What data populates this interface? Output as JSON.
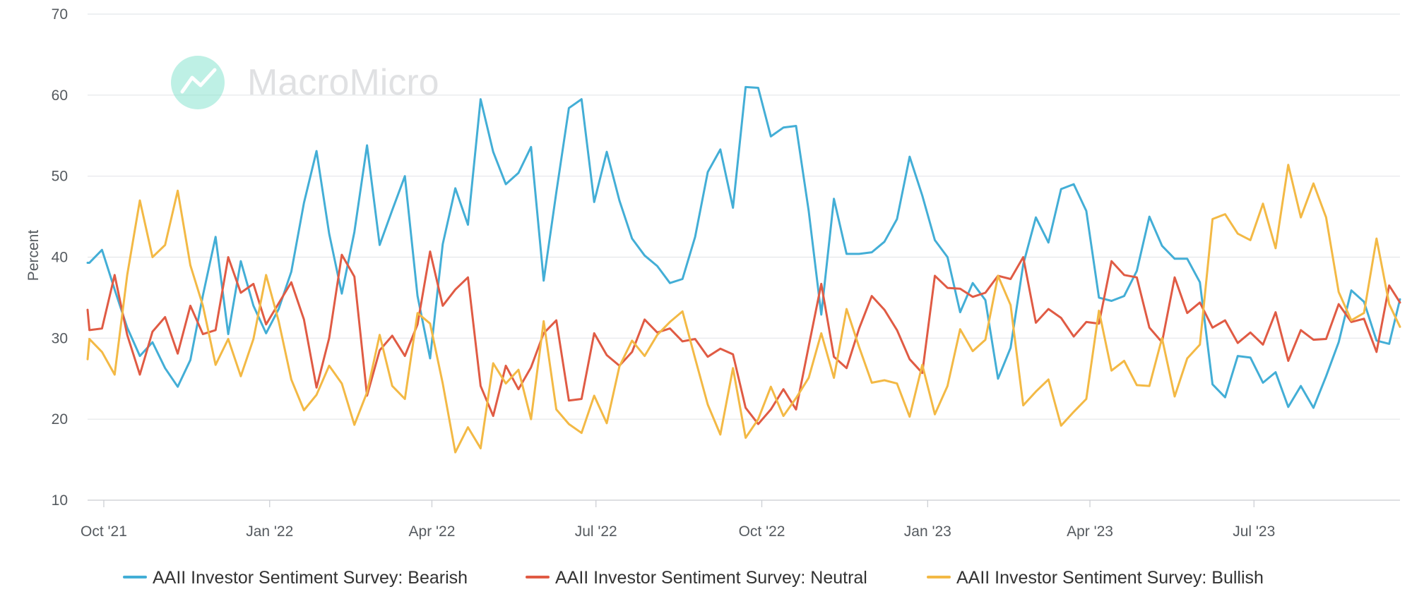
{
  "watermark": {
    "text": "MacroMicro",
    "icon": "chart-logo-icon",
    "color": "#a8efe0"
  },
  "chart_data": {
    "type": "line",
    "ylabel": "Percent",
    "xlabel": "",
    "ylim": [
      10,
      70
    ],
    "yticks": [
      10,
      20,
      30,
      40,
      50,
      60,
      70
    ],
    "grid": true,
    "legend_position": "bottom",
    "x_start": "2021-09-22",
    "x_end": "2023-09-20",
    "x_tick_dates": [
      "2021-10-01",
      "2022-01-01",
      "2022-04-01",
      "2022-07-01",
      "2022-10-01",
      "2023-01-01",
      "2023-04-01",
      "2023-07-01"
    ],
    "x_tick_labels": [
      "Oct '21",
      "Jan '22",
      "Apr '22",
      "Jul '22",
      "Oct '22",
      "Jan '23",
      "Apr '23",
      "Jul '23"
    ],
    "x": [
      "2021-09-22",
      "2021-09-23",
      "2021-09-30",
      "2021-10-07",
      "2021-10-14",
      "2021-10-21",
      "2021-10-28",
      "2021-11-04",
      "2021-11-11",
      "2021-11-18",
      "2021-11-25",
      "2021-12-02",
      "2021-12-09",
      "2021-12-16",
      "2021-12-23",
      "2021-12-30",
      "2022-01-06",
      "2022-01-13",
      "2022-01-20",
      "2022-01-27",
      "2022-02-03",
      "2022-02-10",
      "2022-02-17",
      "2022-02-24",
      "2022-03-03",
      "2022-03-10",
      "2022-03-17",
      "2022-03-24",
      "2022-03-31",
      "2022-04-07",
      "2022-04-14",
      "2022-04-21",
      "2022-04-28",
      "2022-05-05",
      "2022-05-12",
      "2022-05-19",
      "2022-05-26",
      "2022-06-02",
      "2022-06-09",
      "2022-06-16",
      "2022-06-23",
      "2022-06-30",
      "2022-07-07",
      "2022-07-14",
      "2022-07-21",
      "2022-07-28",
      "2022-08-04",
      "2022-08-11",
      "2022-08-18",
      "2022-08-25",
      "2022-09-01",
      "2022-09-08",
      "2022-09-15",
      "2022-09-22",
      "2022-09-29",
      "2022-10-06",
      "2022-10-13",
      "2022-10-20",
      "2022-10-27",
      "2022-11-03",
      "2022-11-10",
      "2022-11-17",
      "2022-11-24",
      "2022-12-01",
      "2022-12-08",
      "2022-12-15",
      "2022-12-22",
      "2022-12-29",
      "2023-01-05",
      "2023-01-12",
      "2023-01-19",
      "2023-01-26",
      "2023-02-02",
      "2023-02-09",
      "2023-02-16",
      "2023-02-23",
      "2023-03-02",
      "2023-03-09",
      "2023-03-16",
      "2023-03-23",
      "2023-03-30",
      "2023-04-06",
      "2023-04-13",
      "2023-04-20",
      "2023-04-27",
      "2023-05-04",
      "2023-05-11",
      "2023-05-18",
      "2023-05-25",
      "2023-06-01",
      "2023-06-08",
      "2023-06-15",
      "2023-06-22",
      "2023-06-29",
      "2023-07-06",
      "2023-07-13",
      "2023-07-20",
      "2023-07-27",
      "2023-08-03",
      "2023-08-10",
      "2023-08-17",
      "2023-08-24",
      "2023-08-31",
      "2023-09-07",
      "2023-09-14",
      "2023-09-20"
    ],
    "series": [
      {
        "name": "AAII Investor Sentiment Survey: Bearish",
        "color": "#43aed6",
        "values": [
          39.3,
          39.3,
          40.9,
          36.0,
          31.3,
          27.8,
          29.5,
          26.3,
          24.0,
          27.3,
          35.3,
          42.5,
          30.5,
          39.5,
          34.0,
          30.6,
          33.6,
          38.2,
          46.7,
          53.1,
          42.9,
          35.5,
          43.1,
          53.8,
          41.5,
          45.8,
          50.0,
          35.2,
          27.5,
          41.6,
          48.5,
          44.0,
          59.5,
          53.0,
          49.0,
          50.4,
          53.6,
          37.1,
          48.0,
          58.4,
          59.5,
          46.8,
          53.0,
          47.0,
          42.3,
          40.2,
          38.9,
          36.8,
          37.3,
          42.5,
          50.5,
          53.3,
          46.1,
          61.0,
          60.9,
          54.9,
          56.0,
          56.2,
          45.7,
          32.9,
          47.2,
          40.4,
          40.4,
          40.6,
          41.9,
          44.7,
          52.4,
          47.6,
          42.1,
          40.0,
          33.2,
          36.8,
          34.7,
          25.0,
          28.8,
          39.1,
          44.9,
          41.8,
          48.4,
          49.0,
          45.7,
          35.0,
          34.6,
          35.2,
          38.3,
          45.0,
          41.4,
          39.8,
          39.8,
          36.9,
          24.3,
          22.7,
          27.8,
          27.6,
          24.5,
          25.8,
          21.5,
          24.1,
          21.4,
          25.3,
          29.5,
          35.9,
          34.5,
          29.7,
          29.3,
          34.8
        ]
      },
      {
        "name": "AAII Investor Sentiment Survey: Neutral",
        "color": "#e05b44",
        "values": [
          33.5,
          31.0,
          31.2,
          37.8,
          30.4,
          25.5,
          30.8,
          32.6,
          28.1,
          34.0,
          30.5,
          31.0,
          40.0,
          35.6,
          36.7,
          31.7,
          34.3,
          36.9,
          32.3,
          23.9,
          30.0,
          40.3,
          37.6,
          22.9,
          28.5,
          30.3,
          27.8,
          31.7,
          40.7,
          34.0,
          36.0,
          37.5,
          24.1,
          20.4,
          26.6,
          23.7,
          26.4,
          30.6,
          32.2,
          22.3,
          22.5,
          30.6,
          27.9,
          26.6,
          28.3,
          32.3,
          30.7,
          31.2,
          29.6,
          29.9,
          27.7,
          28.7,
          28.0,
          21.4,
          19.4,
          21.2,
          23.7,
          21.2,
          29.0,
          36.7,
          27.7,
          26.3,
          31.2,
          35.2,
          33.5,
          31.0,
          27.4,
          25.7,
          37.7,
          36.2,
          36.1,
          35.1,
          35.6,
          37.7,
          37.3,
          40.0,
          31.9,
          33.6,
          32.5,
          30.2,
          32.0,
          31.8,
          39.5,
          37.8,
          37.5,
          31.3,
          29.5,
          37.5,
          33.1,
          34.4,
          31.3,
          32.2,
          29.4,
          30.7,
          29.2,
          33.2,
          27.2,
          31.0,
          29.8,
          29.9,
          34.2,
          32.0,
          32.4,
          28.3,
          36.5,
          34.4
        ]
      },
      {
        "name": "AAII Investor Sentiment Survey: Bullish",
        "color": "#f3b945",
        "values": [
          27.4,
          29.9,
          28.3,
          25.5,
          37.8,
          47.0,
          40.0,
          41.5,
          48.2,
          39.0,
          34.0,
          26.7,
          29.9,
          25.3,
          29.9,
          37.8,
          32.1,
          24.9,
          21.1,
          23.0,
          26.6,
          24.4,
          19.3,
          23.3,
          30.4,
          24.1,
          22.5,
          33.1,
          31.8,
          24.4,
          15.9,
          19.0,
          16.4,
          26.9,
          24.4,
          26.1,
          20.0,
          32.1,
          21.2,
          19.4,
          18.3,
          22.9,
          19.5,
          26.5,
          29.7,
          27.8,
          30.4,
          32.0,
          33.3,
          27.5,
          21.8,
          18.1,
          26.3,
          17.7,
          20.0,
          24.0,
          20.4,
          22.6,
          25.1,
          30.6,
          25.1,
          33.6,
          28.9,
          24.5,
          24.8,
          24.4,
          20.3,
          26.7,
          20.6,
          24.1,
          31.1,
          28.4,
          29.8,
          37.7,
          34.1,
          21.7,
          23.4,
          24.9,
          19.2,
          20.9,
          22.5,
          33.4,
          26.0,
          27.2,
          24.2,
          24.1,
          30.0,
          22.8,
          27.5,
          29.2,
          44.7,
          45.3,
          42.9,
          42.1,
          46.6,
          41.1,
          51.4,
          44.9,
          49.1,
          44.9,
          35.7,
          32.2,
          33.1,
          42.3,
          34.2,
          31.4
        ]
      }
    ]
  }
}
